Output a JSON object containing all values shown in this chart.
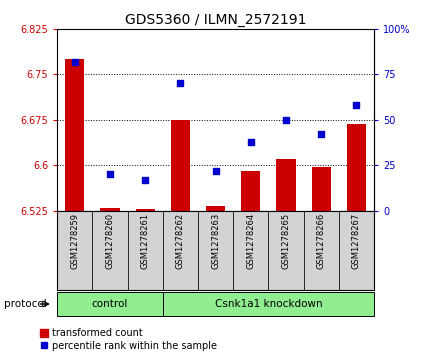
{
  "title": "GDS5360 / ILMN_2572191",
  "samples": [
    "GSM1278259",
    "GSM1278260",
    "GSM1278261",
    "GSM1278262",
    "GSM1278263",
    "GSM1278264",
    "GSM1278265",
    "GSM1278266",
    "GSM1278267"
  ],
  "bar_values": [
    6.775,
    6.53,
    6.527,
    6.675,
    6.533,
    6.59,
    6.61,
    6.597,
    6.668
  ],
  "dot_values_pct": [
    82,
    20,
    17,
    70,
    22,
    38,
    50,
    42,
    58
  ],
  "ylim_left": [
    6.525,
    6.825
  ],
  "ylim_right": [
    0,
    100
  ],
  "yticks_left": [
    6.525,
    6.6,
    6.675,
    6.75,
    6.825
  ],
  "yticks_right": [
    0,
    25,
    50,
    75,
    100
  ],
  "bar_color": "#cc0000",
  "dot_color": "#0000cc",
  "bar_base": 6.525,
  "protocol_groups": [
    {
      "label": "control",
      "start": 0,
      "end": 3
    },
    {
      "label": "Csnk1a1 knockdown",
      "start": 3,
      "end": 9
    }
  ],
  "protocol_label": "protocol",
  "legend_bar_label": "transformed count",
  "legend_dot_label": "percentile rank within the sample",
  "tick_label_bg": "#d3d3d3",
  "group_bg_color": "#90ee90",
  "title_fontsize": 10,
  "tick_fontsize": 7,
  "sample_fontsize": 6,
  "legend_fontsize": 7
}
